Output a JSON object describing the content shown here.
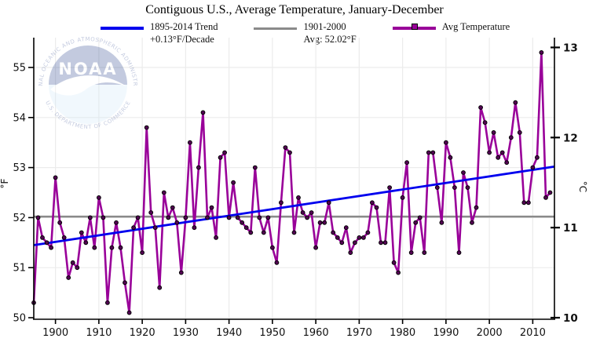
{
  "title": "Contiguous U.S., Average Temperature, January-December",
  "legend": {
    "trend": {
      "line1": "1895-2014 Trend",
      "line2": "+0.13°F/Decade",
      "color": "#0000ee"
    },
    "average": {
      "line1": "1901-2000",
      "line2": "Avg: 52.02°F",
      "color": "#8a8a8a"
    },
    "series": {
      "line1": "Avg Temperature",
      "color": "#990099"
    }
  },
  "watermark": {
    "org": "NOAA",
    "ring_top": "NATIONAL OCEANIC AND ATMOSPHERIC ADMINISTRATION",
    "ring_bottom": "U.S. DEPARTMENT OF COMMERCE"
  },
  "chart_data": {
    "type": "line",
    "title": "Contiguous U.S., Average Temperature, January-December",
    "x": [
      1895,
      1896,
      1897,
      1898,
      1899,
      1900,
      1901,
      1902,
      1903,
      1904,
      1905,
      1906,
      1907,
      1908,
      1909,
      1910,
      1911,
      1912,
      1913,
      1914,
      1915,
      1916,
      1917,
      1918,
      1919,
      1920,
      1921,
      1922,
      1923,
      1924,
      1925,
      1926,
      1927,
      1928,
      1929,
      1930,
      1931,
      1932,
      1933,
      1934,
      1935,
      1936,
      1937,
      1938,
      1939,
      1940,
      1941,
      1942,
      1943,
      1944,
      1945,
      1946,
      1947,
      1948,
      1949,
      1950,
      1951,
      1952,
      1953,
      1954,
      1955,
      1956,
      1957,
      1958,
      1959,
      1960,
      1961,
      1962,
      1963,
      1964,
      1965,
      1966,
      1967,
      1968,
      1969,
      1970,
      1971,
      1972,
      1973,
      1974,
      1975,
      1976,
      1977,
      1978,
      1979,
      1980,
      1981,
      1982,
      1983,
      1984,
      1985,
      1986,
      1987,
      1988,
      1989,
      1990,
      1991,
      1992,
      1993,
      1994,
      1995,
      1996,
      1997,
      1998,
      1999,
      2000,
      2001,
      2002,
      2003,
      2004,
      2005,
      2006,
      2007,
      2008,
      2009,
      2010,
      2011,
      2012,
      2013,
      2014
    ],
    "series": [
      {
        "name": "Avg Temperature",
        "color": "#990099",
        "marker_color": "#550055",
        "values": [
          50.3,
          52.0,
          51.6,
          51.5,
          51.4,
          52.8,
          51.9,
          51.6,
          50.8,
          51.1,
          51.0,
          51.7,
          51.5,
          52.0,
          51.4,
          52.4,
          52.0,
          50.3,
          51.4,
          51.9,
          51.4,
          50.7,
          50.1,
          51.8,
          52.0,
          51.3,
          53.8,
          52.1,
          51.8,
          50.6,
          52.5,
          52.0,
          52.2,
          51.9,
          50.9,
          52.0,
          53.5,
          51.8,
          53.0,
          54.1,
          52.0,
          52.2,
          51.6,
          53.2,
          53.3,
          52.0,
          52.7,
          52.0,
          51.9,
          51.8,
          51.7,
          53.0,
          52.0,
          51.7,
          52.0,
          51.4,
          51.1,
          52.3,
          53.4,
          53.3,
          51.7,
          52.4,
          52.1,
          52.0,
          52.1,
          51.4,
          51.9,
          51.9,
          52.3,
          51.7,
          51.6,
          51.5,
          51.8,
          51.3,
          51.5,
          51.6,
          51.6,
          51.7,
          52.3,
          52.2,
          51.5,
          51.5,
          52.6,
          51.1,
          50.9,
          52.4,
          53.1,
          51.3,
          51.9,
          52.0,
          51.3,
          53.3,
          53.3,
          52.6,
          51.9,
          53.5,
          53.2,
          52.6,
          51.3,
          52.9,
          52.6,
          51.9,
          52.2,
          54.2,
          53.9,
          53.3,
          53.7,
          53.2,
          53.3,
          53.1,
          53.6,
          54.3,
          53.7,
          52.3,
          52.3,
          53.0,
          53.2,
          55.3,
          52.4,
          52.5
        ]
      }
    ],
    "trend_line": {
      "label": "1895-2014 Trend +0.13°F/Decade",
      "color": "#0000ee",
      "start": {
        "x": 1895,
        "y": 51.45
      },
      "end": {
        "x": 2015,
        "y": 53.02
      }
    },
    "reference_line": {
      "label": "1901-2000 Avg",
      "value": 52.02,
      "color": "#8a8a8a"
    },
    "x_axis": {
      "range": [
        1895,
        2015
      ],
      "ticks": [
        1900,
        1910,
        1920,
        1930,
        1940,
        1950,
        1960,
        1970,
        1980,
        1990,
        2000,
        2010
      ]
    },
    "y_axis_f": {
      "label": "°F",
      "ticks": [
        50,
        51,
        52,
        53,
        54,
        55
      ],
      "range": [
        50,
        55.6
      ]
    },
    "y_axis_c": {
      "label": "°C",
      "ticks": [
        10,
        11,
        12,
        13
      ]
    },
    "grid": true,
    "legend_position": "top"
  }
}
